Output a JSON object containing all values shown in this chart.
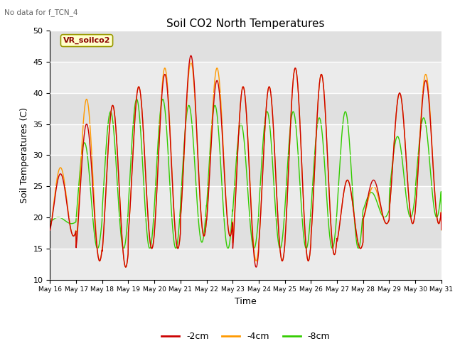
{
  "title": "Soil CO2 North Temperatures",
  "xlabel": "Time",
  "ylabel": "Soil Temperatures (C)",
  "no_data_text": "No data for f_TCN_4",
  "legend_label_text": "VR_soilco2",
  "ylim": [
    10,
    50
  ],
  "xlim": [
    0,
    15
  ],
  "yticks": [
    10,
    15,
    20,
    25,
    30,
    35,
    40,
    45,
    50
  ],
  "xtick_labels": [
    "May 16",
    "May 17",
    "May 18",
    "May 19",
    "May 20",
    "May 21",
    "May 22",
    "May 23",
    "May 24",
    "May 25",
    "May 26",
    "May 27",
    "May 28",
    "May 29",
    "May 30",
    "May 31"
  ],
  "color_2cm": "#cc0000",
  "color_4cm": "#ff9900",
  "color_8cm": "#33cc00",
  "bg_color": "#e8e8e8",
  "bg_alt": "#d8d8d8",
  "legend_entries": [
    "-2cm",
    "-4cm",
    "-8cm"
  ],
  "day_peaks_2cm": [
    27,
    35,
    38,
    41,
    43,
    46,
    42,
    41,
    41,
    44,
    43,
    26,
    26,
    40,
    42,
    18
  ],
  "day_troughs_2cm": [
    17,
    13,
    12,
    15,
    15,
    17,
    17,
    12,
    13,
    13,
    14,
    15,
    19,
    19,
    19,
    18
  ],
  "day_peaks_4cm": [
    28,
    39,
    38,
    41,
    44,
    45,
    44,
    41,
    41,
    44,
    43,
    26,
    25,
    40,
    43,
    18
  ],
  "day_troughs_4cm": [
    17,
    13,
    12,
    15,
    15,
    17,
    17,
    13,
    13,
    13,
    14,
    15,
    19,
    19,
    19,
    18
  ],
  "day_peaks_8cm": [
    20,
    32,
    37,
    39,
    39,
    38,
    38,
    35,
    37,
    37,
    36,
    37,
    24,
    33,
    36,
    18
  ],
  "day_troughs_8cm": [
    19,
    15,
    15,
    15,
    15,
    16,
    15,
    15,
    15,
    15,
    15,
    15,
    20,
    20,
    20,
    18
  ],
  "phase_2cm": 0.0,
  "phase_4cm": 0.0,
  "phase_8cm": 0.08,
  "n_points": 1500,
  "linewidth": 1.0
}
